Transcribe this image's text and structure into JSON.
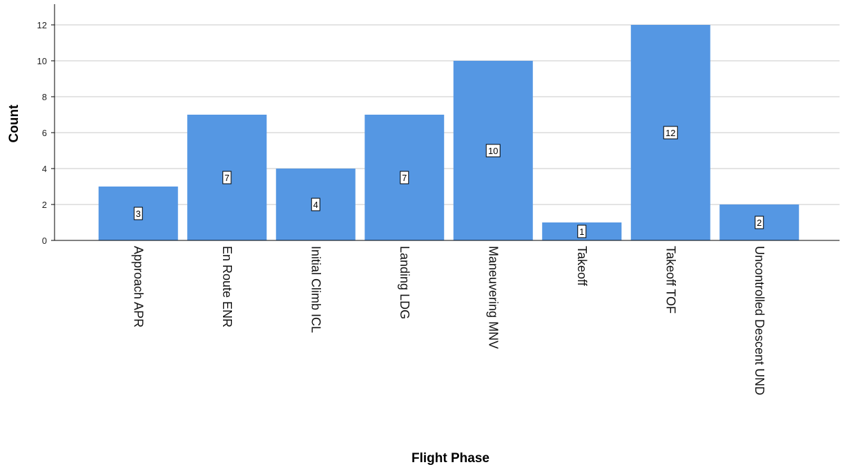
{
  "chart_data": {
    "type": "bar",
    "categories": [
      "Approach APR",
      "En Route ENR",
      "Initial Climb ICL",
      "Landing LDG",
      "Maneuvering MNV",
      "Takeoff",
      "Takeoff TOF",
      "Uncontrolled Descent UND"
    ],
    "values": [
      3,
      7,
      4,
      7,
      10,
      1,
      12,
      2
    ],
    "data_labels": [
      "3",
      "7",
      "4",
      "7",
      "10",
      "1",
      "12",
      "2"
    ],
    "xlabel": "Flight Phase",
    "ylabel": "Count",
    "ylim": [
      0,
      13
    ],
    "yticks": [
      0,
      2,
      4,
      6,
      8,
      10,
      12
    ],
    "ytick_labels": [
      "0",
      "2",
      "4",
      "6",
      "8",
      "10",
      "12"
    ],
    "grid": true,
    "legend": "none",
    "colors": {
      "bar": "#5597e3",
      "grid": "#c8c8c8"
    }
  }
}
